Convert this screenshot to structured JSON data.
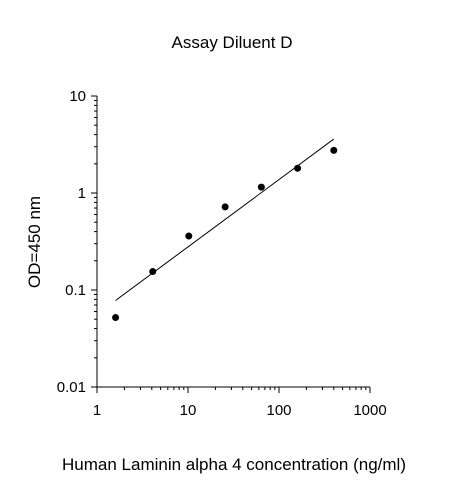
{
  "chart_data": {
    "type": "scatter",
    "title": "Assay Diluent D",
    "xlabel": "Human Laminin alpha 4 concentration (ng/ml)",
    "ylabel": "OD=450 nm",
    "x_scale": "log",
    "y_scale": "log",
    "xlim": [
      1,
      1000
    ],
    "ylim": [
      0.01,
      10
    ],
    "x_ticks": [
      1,
      10,
      100,
      1000
    ],
    "x_tick_labels": [
      "1",
      "10",
      "100",
      "1000"
    ],
    "y_ticks": [
      0.01,
      0.1,
      1,
      10
    ],
    "y_tick_labels": [
      "0.01",
      "0.1",
      "1",
      "10"
    ],
    "grid": false,
    "legend": "none",
    "series": [
      {
        "x": [
          1.6,
          4.1,
          10.2,
          25.6,
          64,
          160,
          400
        ],
        "y": [
          0.052,
          0.155,
          0.36,
          0.72,
          1.15,
          1.8,
          2.75
        ]
      }
    ],
    "trendline": {
      "x": [
        1.6,
        400
      ],
      "y": [
        0.078,
        3.6
      ]
    },
    "colors": {
      "marker": "#000000",
      "line": "#000000",
      "axes": "#000000"
    }
  }
}
